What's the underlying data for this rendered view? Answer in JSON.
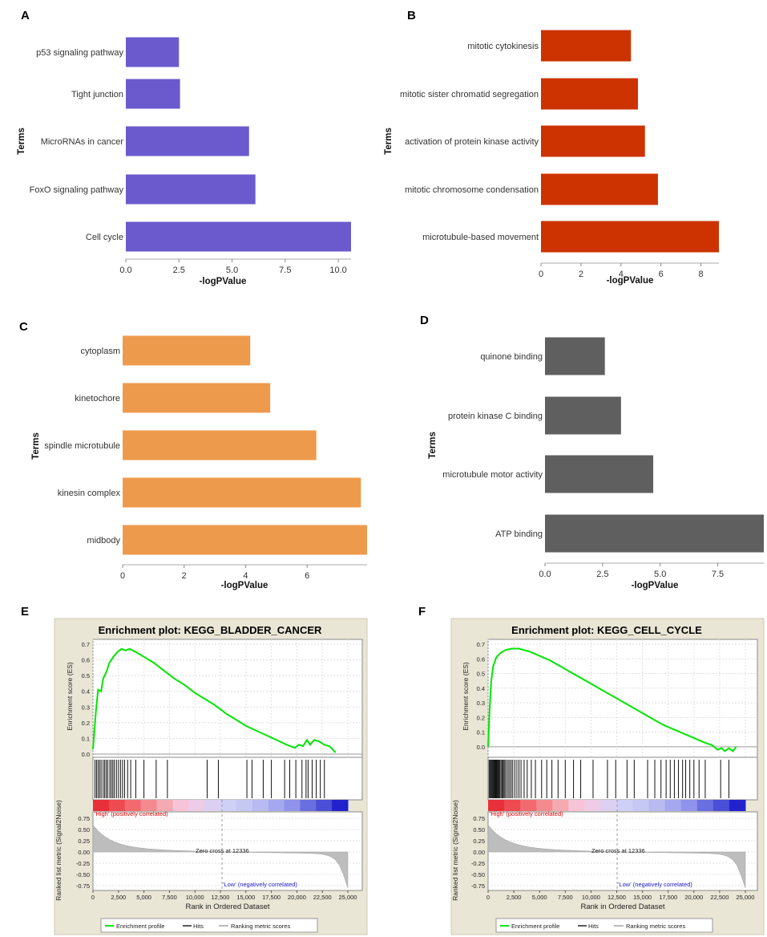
{
  "panel_labels": [
    "A",
    "B",
    "C",
    "D",
    "E",
    "F"
  ],
  "chart_data": [
    {
      "id": "A",
      "type": "bar",
      "orientation": "horizontal",
      "categories": [
        "p53 signaling pathway",
        "Tight junction",
        "MicroRNAs in cancer",
        "FoxO signaling pathway",
        "Cell cycle"
      ],
      "values": [
        2.5,
        2.55,
        5.8,
        6.1,
        10.6
      ],
      "color": "#6A5ACD",
      "xlabel": "-logPValue",
      "ylabel": "Terms",
      "xlim": [
        0,
        10.6
      ],
      "xticks": [
        "0.0",
        "2.5",
        "5.0",
        "7.5",
        "10.0"
      ]
    },
    {
      "id": "B",
      "type": "bar",
      "orientation": "horizontal",
      "categories": [
        "mitotic cytokinesis",
        "mitotic sister chromatid segregation",
        "activation of protein kinase activity",
        "mitotic chromosome condensation",
        "microtubule-based movement"
      ],
      "values": [
        4.5,
        4.85,
        5.2,
        5.85,
        8.9
      ],
      "color": "#CC3300",
      "xlabel": "-logPValue",
      "ylabel": "Terms",
      "xlim": [
        0,
        8.9
      ],
      "xticks": [
        "0",
        "2",
        "4",
        "6",
        "8"
      ]
    },
    {
      "id": "C",
      "type": "bar",
      "orientation": "horizontal",
      "categories": [
        "cytoplasm",
        "kinetochore",
        "spindle microtubule",
        "kinesin complex",
        "midbody"
      ],
      "values": [
        4.15,
        4.8,
        6.3,
        7.75,
        7.95
      ],
      "color": "#EE9A4D",
      "xlabel": "-logPValue",
      "ylabel": "Terms",
      "xlim": [
        0,
        7.95
      ],
      "xticks": [
        "0",
        "2",
        "4",
        "6"
      ]
    },
    {
      "id": "D",
      "type": "bar",
      "orientation": "horizontal",
      "categories": [
        "quinone binding",
        "protein kinase C binding",
        "microtubule motor activity",
        "ATP binding"
      ],
      "values": [
        2.6,
        3.3,
        4.7,
        9.5
      ],
      "color": "#5F5F5F",
      "xlabel": "-logPValue",
      "ylabel": "Terms",
      "xlim": [
        0,
        9.5
      ],
      "xticks": [
        "0.0",
        "2.5",
        "5.0",
        "7.5"
      ]
    },
    {
      "id": "E",
      "type": "line",
      "title": "Enrichment plot: KEGG_BLADDER_CANCER",
      "ylabel_top": "Enrichment score (ES)",
      "ylabel_bottom": "Ranked list metric (Signal2Noise)",
      "xlabel": "Rank in Ordered Dataset",
      "es_yticks": [
        "0.0",
        "0.1",
        "0.2",
        "0.3",
        "0.4",
        "0.5",
        "0.6",
        "0.7"
      ],
      "metric_yticks": [
        "0.75",
        "0.50",
        "0.25",
        "0.00",
        "-0.25",
        "-0.50",
        "-0.75"
      ],
      "xticks": [
        "0",
        "2,500",
        "5,000",
        "7,500",
        "10,000",
        "12,500",
        "15,000",
        "17,500",
        "20,000",
        "22,500",
        "25,000"
      ],
      "xlim": [
        0,
        25000
      ],
      "es_ylim": [
        0,
        0.7
      ],
      "es_curve": [
        [
          0,
          0.03
        ],
        [
          300,
          0.28
        ],
        [
          500,
          0.41
        ],
        [
          800,
          0.4
        ],
        [
          1000,
          0.48
        ],
        [
          1300,
          0.52
        ],
        [
          1600,
          0.58
        ],
        [
          2000,
          0.62
        ],
        [
          2400,
          0.65
        ],
        [
          2800,
          0.67
        ],
        [
          3200,
          0.66
        ],
        [
          3600,
          0.67
        ],
        [
          4200,
          0.65
        ],
        [
          5000,
          0.62
        ],
        [
          6000,
          0.58
        ],
        [
          7000,
          0.53
        ],
        [
          8000,
          0.48
        ],
        [
          9000,
          0.44
        ],
        [
          10000,
          0.39
        ],
        [
          11000,
          0.35
        ],
        [
          12000,
          0.31
        ],
        [
          13000,
          0.26
        ],
        [
          14000,
          0.22
        ],
        [
          15000,
          0.18
        ],
        [
          16000,
          0.15
        ],
        [
          17000,
          0.12
        ],
        [
          18000,
          0.09
        ],
        [
          19000,
          0.06
        ],
        [
          19800,
          0.04
        ],
        [
          20200,
          0.06
        ],
        [
          20600,
          0.05
        ],
        [
          21000,
          0.09
        ],
        [
          21300,
          0.06
        ],
        [
          21700,
          0.09
        ],
        [
          22200,
          0.08
        ],
        [
          22700,
          0.06
        ],
        [
          23200,
          0.05
        ],
        [
          23800,
          0.01
        ]
      ],
      "hits": [
        200,
        350,
        500,
        650,
        800,
        1000,
        1150,
        1300,
        1450,
        1650,
        1800,
        1950,
        2100,
        2300,
        2500,
        2700,
        2900,
        3100,
        3400,
        3700,
        4200,
        5000,
        6200,
        7300,
        11200,
        12300,
        15100,
        15600,
        16700,
        17500,
        18800,
        19300,
        19900,
        20500,
        20900,
        21100,
        21500,
        21900,
        22300,
        22700
      ],
      "high_label": "'High' (positively correlated)",
      "low_label": "'Low' (negatively correlated)",
      "zero_cross": "Zero cross at 12336",
      "legend": [
        "Enrichment profile",
        "Hits",
        "Ranking metric scores"
      ]
    },
    {
      "id": "F",
      "type": "line",
      "title": "Enrichment plot: KEGG_CELL_CYCLE",
      "ylabel_top": "Enrichment score (ES)",
      "ylabel_bottom": "Ranked list metric (Signal2Noise)",
      "xlabel": "Rank in Ordered Dataset",
      "es_yticks": [
        "0.0",
        "0.1",
        "0.2",
        "0.3",
        "0.4",
        "0.5",
        "0.6",
        "0.7"
      ],
      "metric_yticks": [
        "0.75",
        "0.50",
        "0.25",
        "0.00",
        "-0.25",
        "-0.50",
        "-0.75"
      ],
      "xticks": [
        "0",
        "2,500",
        "5,000",
        "7,500",
        "10,000",
        "12,500",
        "15,000",
        "17,500",
        "20,000",
        "22,500",
        "25,000"
      ],
      "xlim": [
        0,
        25000
      ],
      "es_ylim": [
        -0.05,
        0.7
      ],
      "es_curve": [
        [
          0,
          0.0
        ],
        [
          150,
          0.25
        ],
        [
          300,
          0.45
        ],
        [
          500,
          0.55
        ],
        [
          800,
          0.61
        ],
        [
          1200,
          0.64
        ],
        [
          1700,
          0.66
        ],
        [
          2300,
          0.67
        ],
        [
          3000,
          0.67
        ],
        [
          4000,
          0.65
        ],
        [
          5000,
          0.62
        ],
        [
          6000,
          0.59
        ],
        [
          7000,
          0.55
        ],
        [
          8000,
          0.51
        ],
        [
          9000,
          0.47
        ],
        [
          10000,
          0.43
        ],
        [
          11000,
          0.39
        ],
        [
          12000,
          0.35
        ],
        [
          13000,
          0.31
        ],
        [
          14000,
          0.27
        ],
        [
          15000,
          0.23
        ],
        [
          16000,
          0.19
        ],
        [
          17000,
          0.15
        ],
        [
          18000,
          0.12
        ],
        [
          19000,
          0.09
        ],
        [
          20000,
          0.06
        ],
        [
          21000,
          0.03
        ],
        [
          21800,
          0.01
        ],
        [
          22300,
          -0.02
        ],
        [
          22700,
          -0.01
        ],
        [
          23000,
          -0.03
        ],
        [
          23400,
          -0.01
        ],
        [
          23800,
          -0.03
        ],
        [
          24100,
          0.0
        ]
      ],
      "hits": [
        100,
        180,
        260,
        340,
        420,
        500,
        580,
        660,
        740,
        820,
        900,
        980,
        1060,
        1140,
        1250,
        1350,
        1450,
        1550,
        1650,
        1800,
        1950,
        2100,
        2250,
        2400,
        2600,
        2800,
        3000,
        3200,
        3500,
        3800,
        4200,
        4600,
        5200,
        5700,
        6200,
        6800,
        7500,
        8300,
        9000,
        10200,
        11600,
        12400,
        13500,
        14200,
        15500,
        16200,
        16800,
        17300,
        17700,
        18100,
        18500,
        18900,
        19200,
        19600,
        20000,
        20500,
        21100,
        22600,
        23400
      ],
      "high_label": "'High' (positively correlated)",
      "low_label": "'Low' (negatively correlated)",
      "zero_cross": "Zero cross at 12336",
      "legend": [
        "Enrichment profile",
        "Hits",
        "Ranking metric scores"
      ]
    }
  ]
}
